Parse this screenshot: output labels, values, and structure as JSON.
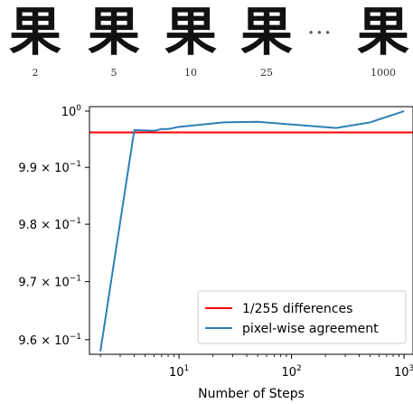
{
  "glyph_strip": {
    "items": [
      {
        "glyph": "果",
        "label": "2"
      },
      {
        "glyph": "果",
        "label": "5"
      },
      {
        "glyph": "果",
        "label": "10"
      },
      {
        "glyph": "果",
        "label": "25"
      },
      {
        "glyph": "果",
        "label": "1000"
      }
    ],
    "ellipsis": "···"
  },
  "chart_data": {
    "type": "line",
    "title": "",
    "xlabel": "Number of Steps",
    "ylabel": "",
    "xscale": "log",
    "yscale": "log",
    "xlim": [
      1.6,
      1200
    ],
    "ylim": [
      0.9575,
      1.0008
    ],
    "x_ticks": [
      {
        "value": 10,
        "base": "10",
        "exp": "1"
      },
      {
        "value": 100,
        "base": "10",
        "exp": "2"
      },
      {
        "value": 1000,
        "base": "10",
        "exp": "3"
      }
    ],
    "y_ticks": [
      {
        "value": 1.0,
        "mant": "",
        "base": "10",
        "exp": "0"
      },
      {
        "value": 0.99,
        "mant": "9.9",
        "base": "10",
        "exp": "−1"
      },
      {
        "value": 0.98,
        "mant": "9.8",
        "base": "10",
        "exp": "−1"
      },
      {
        "value": 0.97,
        "mant": "9.7",
        "base": "10",
        "exp": "−1"
      },
      {
        "value": 0.96,
        "mant": "9.6",
        "base": "10",
        "exp": "−1"
      }
    ],
    "grid": false,
    "legend_position": "lower-right",
    "series": [
      {
        "name": "1/255 differences",
        "type": "hline",
        "y": 0.9962,
        "color": "#ff0000"
      },
      {
        "name": "pixel-wise agreement",
        "type": "line",
        "color": "#2e7fb5",
        "x": [
          2,
          4,
          6,
          7,
          8,
          10,
          25,
          50,
          250,
          500,
          1000
        ],
        "y": [
          0.958,
          0.9966,
          0.9965,
          0.9968,
          0.9968,
          0.9972,
          0.998,
          0.9981,
          0.997,
          0.998,
          1.0
        ]
      }
    ]
  }
}
